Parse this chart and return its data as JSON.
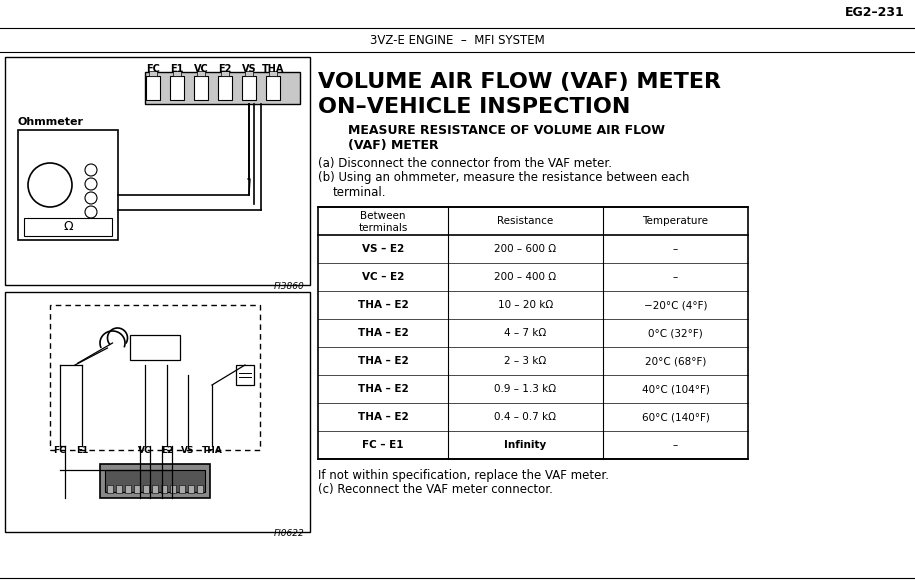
{
  "page_ref": "EG2–231",
  "header_text": "3VZ-E ENGINE  –  MFI SYSTEM",
  "title_line1": "VOLUME AIR FLOW (VAF) METER",
  "title_line2": "ON–VEHICLE INSPECTION",
  "subtitle_line1": "MEASURE RESISTANCE OF VOLUME AIR FLOW",
  "subtitle_line2": "(VAF) METER",
  "step_a": "(a) Disconnect the connector from the VAF meter.",
  "step_b1": "(b) Using an ohmmeter, measure the resistance between each",
  "step_b2": "terminal.",
  "footer1": "If not within specification, replace the VAF meter.",
  "footer2": "(c) Reconnect the VAF meter connector.",
  "table_headers": [
    "Between\nterminals",
    "Resistance",
    "Temperature"
  ],
  "table_rows": [
    [
      "VS – E2",
      "200 – 600 Ω",
      "–"
    ],
    [
      "VC – E2",
      "200 – 400 Ω",
      "–"
    ],
    [
      "THA – E2",
      "10 – 20 kΩ",
      "−20°C (4°F)"
    ],
    [
      "THA – E2",
      "4 – 7 kΩ",
      "0°C (32°F)"
    ],
    [
      "THA – E2",
      "2 – 3 kΩ",
      "20°C (68°F)"
    ],
    [
      "THA – E2",
      "0.9 – 1.3 kΩ",
      "40°C (104°F)"
    ],
    [
      "THA – E2",
      "0.4 – 0.7 kΩ",
      "60°C (140°F)"
    ],
    [
      "FC – E1",
      "Infinity",
      "–"
    ]
  ],
  "fig1_label": "FI3860",
  "fig2_label": "FI0622",
  "connector_pins": [
    "FC",
    "E1",
    "VC",
    "E2",
    "VS",
    "THA"
  ],
  "bg_color": "#ffffff",
  "text_color": "#000000"
}
